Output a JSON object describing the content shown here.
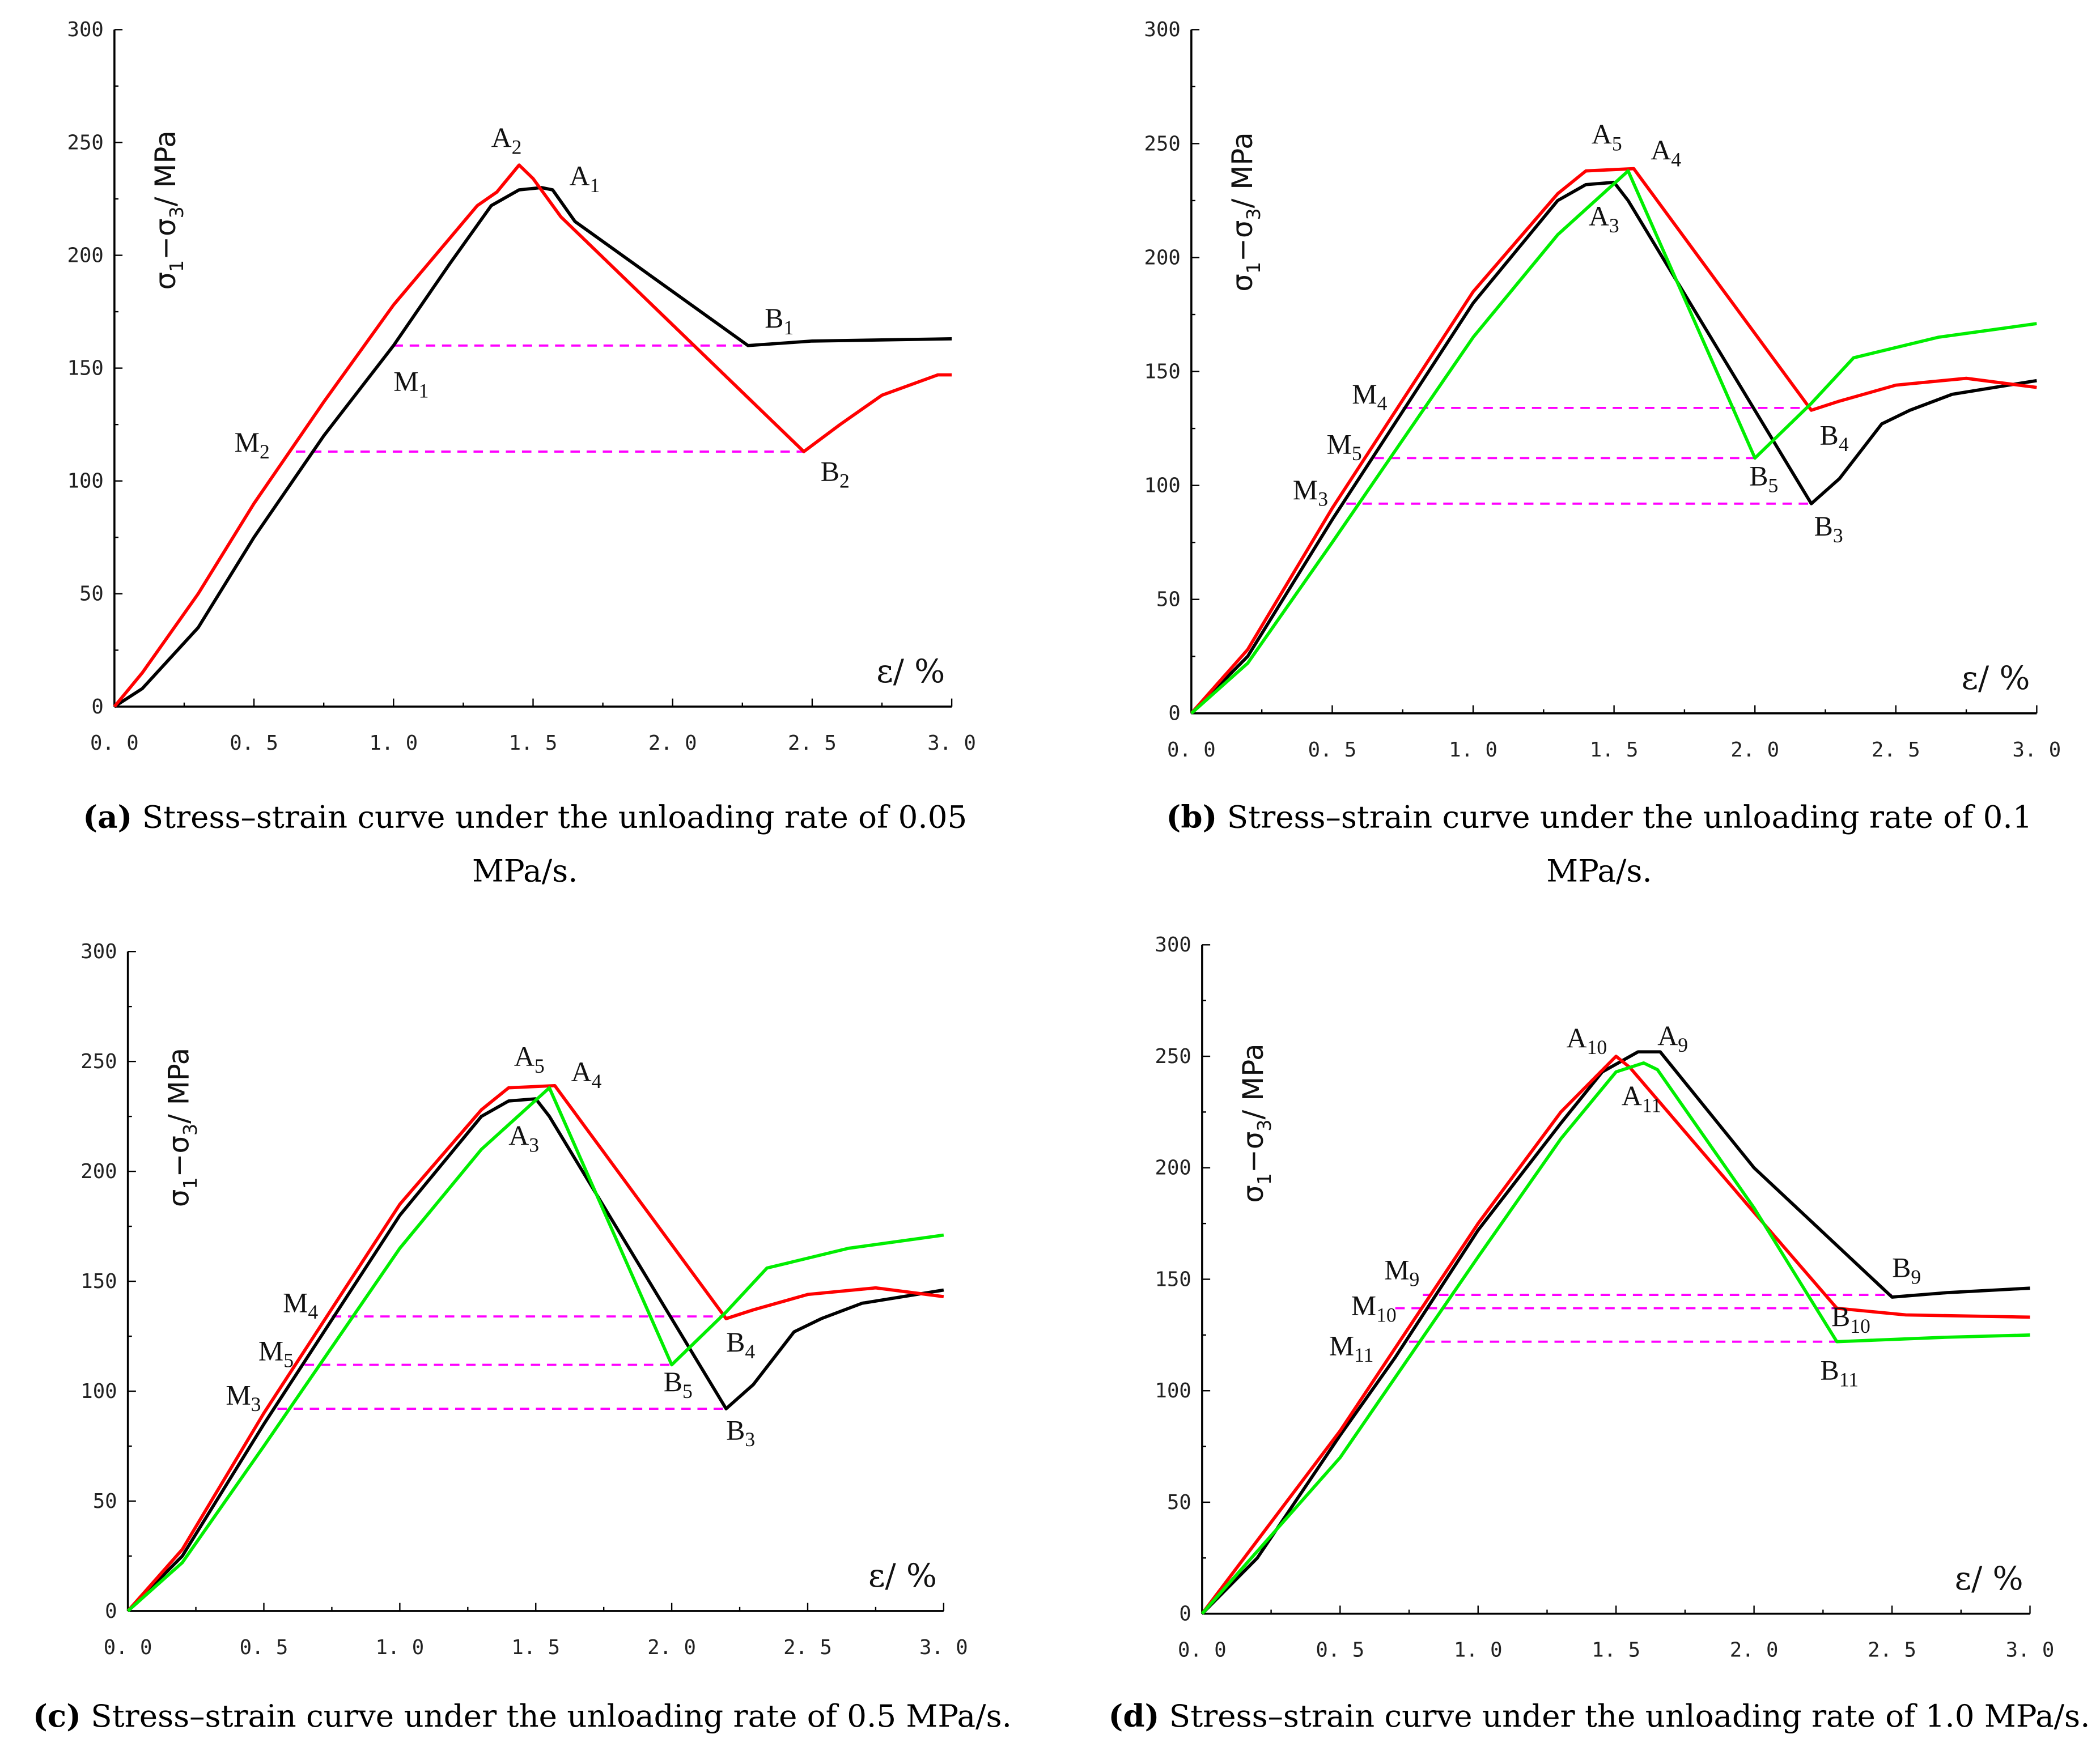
{
  "colors": {
    "black": "#000000",
    "red": "#ff0000",
    "green": "#00ee00",
    "dash": "#ff00ff"
  },
  "chart_data": [
    {
      "type": "line",
      "panel": "a",
      "xlim": [
        0,
        3
      ],
      "ylim": [
        0,
        300
      ],
      "xticks": [
        "0. 0",
        "0. 5",
        "1. 0",
        "1. 5",
        "2. 0",
        "2. 5",
        "3. 0"
      ],
      "yticks": [
        "0",
        "50",
        "100",
        "150",
        "200",
        "250",
        "300"
      ],
      "ylabel": {
        "main": "σ",
        "s1": "1",
        "mid": "−σ",
        "s3": "3",
        "end": "/ MPa"
      },
      "xlabel": "ε/ %",
      "caption": {
        "tag": "(a)",
        "line1": " Stress–strain curve under the unloading rate of 0.05",
        "line2": "MPa/s."
      },
      "series": [
        {
          "name": "black",
          "color": "black",
          "points": [
            [
              0,
              0
            ],
            [
              0.1,
              8
            ],
            [
              0.3,
              35
            ],
            [
              0.5,
              75
            ],
            [
              0.75,
              120
            ],
            [
              1.0,
              160
            ],
            [
              1.2,
              196
            ],
            [
              1.35,
              222
            ],
            [
              1.45,
              229
            ],
            [
              1.53,
              230
            ],
            [
              1.57,
              229
            ],
            [
              1.65,
              215
            ],
            [
              2.27,
              160
            ],
            [
              2.5,
              162
            ],
            [
              3.0,
              163
            ]
          ]
        },
        {
          "name": "red",
          "color": "red",
          "points": [
            [
              0,
              0
            ],
            [
              0.1,
              15
            ],
            [
              0.3,
              50
            ],
            [
              0.5,
              90
            ],
            [
              0.75,
              135
            ],
            [
              1.0,
              178
            ],
            [
              1.3,
              222
            ],
            [
              1.37,
              228
            ],
            [
              1.45,
              240
            ],
            [
              1.5,
              234
            ],
            [
              1.6,
              217
            ],
            [
              2.47,
              113
            ],
            [
              2.6,
              125
            ],
            [
              2.75,
              138
            ],
            [
              2.95,
              147
            ],
            [
              3.0,
              147
            ]
          ]
        }
      ],
      "dashes": [
        {
          "y": 160,
          "x": [
            1.0,
            2.27
          ]
        },
        {
          "y": 113,
          "x": [
            0.65,
            2.47
          ]
        }
      ],
      "annotations": [
        {
          "t": "A",
          "s": "2",
          "x": 1.35,
          "y": 248
        },
        {
          "t": "A",
          "s": "1",
          "x": 1.63,
          "y": 231
        },
        {
          "t": "B",
          "s": "1",
          "x": 2.33,
          "y": 168
        },
        {
          "t": "M",
          "s": "1",
          "x": 1.0,
          "y": 140
        },
        {
          "t": "M",
          "s": "2",
          "x": 0.43,
          "y": 113
        },
        {
          "t": "B",
          "s": "2",
          "x": 2.53,
          "y": 100
        }
      ]
    },
    {
      "type": "line",
      "panel": "b",
      "xlim": [
        0,
        3
      ],
      "ylim": [
        0,
        300
      ],
      "xticks": [
        "0. 0",
        "0. 5",
        "1. 0",
        "1. 5",
        "2. 0",
        "2. 5",
        "3. 0"
      ],
      "yticks": [
        "0",
        "50",
        "100",
        "150",
        "200",
        "250",
        "300"
      ],
      "ylabel": {
        "main": "σ",
        "s1": "1",
        "mid": "−σ",
        "s3": "3",
        "end": "/ MPa"
      },
      "xlabel": "ε/ %",
      "caption": {
        "tag": "(b)",
        "line1": " Stress–strain curve under the unloading rate of 0.1",
        "line2": "MPa/s."
      },
      "series": [
        {
          "name": "black",
          "color": "black",
          "points": [
            [
              0,
              0
            ],
            [
              0.2,
              25
            ],
            [
              0.5,
              85
            ],
            [
              1.0,
              180
            ],
            [
              1.3,
              225
            ],
            [
              1.4,
              232
            ],
            [
              1.5,
              233
            ],
            [
              1.55,
              225
            ],
            [
              2.2,
              92
            ],
            [
              2.3,
              103
            ],
            [
              2.45,
              127
            ],
            [
              2.55,
              133
            ],
            [
              2.7,
              140
            ],
            [
              3.0,
              146
            ]
          ]
        },
        {
          "name": "red",
          "color": "red",
          "points": [
            [
              0,
              0
            ],
            [
              0.2,
              28
            ],
            [
              0.5,
              90
            ],
            [
              1.0,
              185
            ],
            [
              1.3,
              228
            ],
            [
              1.4,
              238
            ],
            [
              1.57,
              239
            ],
            [
              2.2,
              133
            ],
            [
              2.3,
              137
            ],
            [
              2.5,
              144
            ],
            [
              2.75,
              147
            ],
            [
              3.0,
              143
            ]
          ]
        },
        {
          "name": "green",
          "color": "green",
          "points": [
            [
              0,
              0
            ],
            [
              0.2,
              22
            ],
            [
              0.5,
              75
            ],
            [
              1.0,
              165
            ],
            [
              1.3,
              210
            ],
            [
              1.55,
              238
            ],
            [
              2.0,
              112
            ],
            [
              2.2,
              136
            ],
            [
              2.35,
              156
            ],
            [
              2.65,
              165
            ],
            [
              3.0,
              171
            ]
          ]
        }
      ],
      "dashes": [
        {
          "y": 134,
          "x": [
            0.75,
            2.2
          ]
        },
        {
          "y": 112,
          "x": [
            0.65,
            2.0
          ]
        },
        {
          "y": 92,
          "x": [
            0.55,
            2.2
          ]
        }
      ],
      "annotations": [
        {
          "t": "A",
          "s": "5",
          "x": 1.42,
          "y": 250
        },
        {
          "t": "A",
          "s": "4",
          "x": 1.63,
          "y": 243
        },
        {
          "t": "A",
          "s": "3",
          "x": 1.41,
          "y": 214
        },
        {
          "t": "M",
          "s": "4",
          "x": 0.57,
          "y": 136
        },
        {
          "t": "M",
          "s": "5",
          "x": 0.48,
          "y": 114
        },
        {
          "t": "M",
          "s": "3",
          "x": 0.36,
          "y": 94
        },
        {
          "t": "B",
          "s": "4",
          "x": 2.23,
          "y": 118
        },
        {
          "t": "B",
          "s": "5",
          "x": 1.98,
          "y": 100
        },
        {
          "t": "B",
          "s": "3",
          "x": 2.21,
          "y": 78
        }
      ]
    },
    {
      "type": "line",
      "panel": "c",
      "xlim": [
        0,
        3
      ],
      "ylim": [
        0,
        300
      ],
      "xticks": [
        "0. 0",
        "0. 5",
        "1. 0",
        "1. 5",
        "2. 0",
        "2. 5",
        "3. 0"
      ],
      "yticks": [
        "0",
        "50",
        "100",
        "150",
        "200",
        "250",
        "300"
      ],
      "ylabel": {
        "main": "σ",
        "s1": "1",
        "mid": "−σ",
        "s3": "3",
        "end": "/ MPa"
      },
      "xlabel": "ε/ %",
      "caption": {
        "tag": "(c)",
        "line1": " Stress–strain curve under the unloading rate of 0.5 MPa/s.",
        "line2": ""
      },
      "series": [
        {
          "name": "black",
          "color": "black",
          "points": [
            [
              0,
              0
            ],
            [
              0.2,
              25
            ],
            [
              0.5,
              85
            ],
            [
              1.0,
              180
            ],
            [
              1.3,
              225
            ],
            [
              1.4,
              232
            ],
            [
              1.5,
              233
            ],
            [
              1.55,
              225
            ],
            [
              2.2,
              92
            ],
            [
              2.3,
              103
            ],
            [
              2.45,
              127
            ],
            [
              2.55,
              133
            ],
            [
              2.7,
              140
            ],
            [
              3.0,
              146
            ]
          ]
        },
        {
          "name": "red",
          "color": "red",
          "points": [
            [
              0,
              0
            ],
            [
              0.2,
              28
            ],
            [
              0.5,
              90
            ],
            [
              1.0,
              185
            ],
            [
              1.3,
              228
            ],
            [
              1.4,
              238
            ],
            [
              1.57,
              239
            ],
            [
              2.2,
              133
            ],
            [
              2.3,
              137
            ],
            [
              2.5,
              144
            ],
            [
              2.75,
              147
            ],
            [
              3.0,
              143
            ]
          ]
        },
        {
          "name": "green",
          "color": "green",
          "points": [
            [
              0,
              0
            ],
            [
              0.2,
              22
            ],
            [
              0.5,
              75
            ],
            [
              1.0,
              165
            ],
            [
              1.3,
              210
            ],
            [
              1.55,
              238
            ],
            [
              2.0,
              112
            ],
            [
              2.2,
              136
            ],
            [
              2.35,
              156
            ],
            [
              2.65,
              165
            ],
            [
              3.0,
              171
            ]
          ]
        }
      ],
      "dashes": [
        {
          "y": 134,
          "x": [
            0.75,
            2.2
          ]
        },
        {
          "y": 112,
          "x": [
            0.65,
            2.0
          ]
        },
        {
          "y": 92,
          "x": [
            0.55,
            2.2
          ]
        }
      ],
      "annotations": [
        {
          "t": "A",
          "s": "5",
          "x": 1.42,
          "y": 248
        },
        {
          "t": "A",
          "s": "4",
          "x": 1.63,
          "y": 241
        },
        {
          "t": "A",
          "s": "3",
          "x": 1.4,
          "y": 212
        },
        {
          "t": "M",
          "s": "4",
          "x": 0.57,
          "y": 136
        },
        {
          "t": "M",
          "s": "5",
          "x": 0.48,
          "y": 114
        },
        {
          "t": "M",
          "s": "3",
          "x": 0.36,
          "y": 94
        },
        {
          "t": "B",
          "s": "4",
          "x": 2.2,
          "y": 118
        },
        {
          "t": "B",
          "s": "5",
          "x": 1.97,
          "y": 100
        },
        {
          "t": "B",
          "s": "3",
          "x": 2.2,
          "y": 78
        }
      ]
    },
    {
      "type": "line",
      "panel": "d",
      "xlim": [
        0,
        3
      ],
      "ylim": [
        0,
        300
      ],
      "xticks": [
        "0. 0",
        "0. 5",
        "1. 0",
        "1. 5",
        "2. 0",
        "2. 5",
        "3. 0"
      ],
      "yticks": [
        "0",
        "50",
        "100",
        "150",
        "200",
        "250",
        "300"
      ],
      "ylabel": {
        "main": "σ",
        "s1": "1",
        "mid": "−σ",
        "s3": "3",
        "end": "/ MPa"
      },
      "xlabel": "ε/ %",
      "caption": {
        "tag": "(d)",
        "line1": " Stress–strain curve under the unloading rate of 1.0 MPa/s.",
        "line2": ""
      },
      "series": [
        {
          "name": "black",
          "color": "black",
          "points": [
            [
              0,
              0
            ],
            [
              0.2,
              25
            ],
            [
              0.5,
              80
            ],
            [
              0.7,
              115
            ],
            [
              1.0,
              172
            ],
            [
              1.3,
              220
            ],
            [
              1.45,
              243
            ],
            [
              1.58,
              252
            ],
            [
              1.66,
              252
            ],
            [
              2.0,
              200
            ],
            [
              2.5,
              142
            ],
            [
              2.7,
              144
            ],
            [
              3.0,
              146
            ]
          ]
        },
        {
          "name": "red",
          "color": "red",
          "points": [
            [
              0,
              0
            ],
            [
              0.5,
              82
            ],
            [
              1.0,
              175
            ],
            [
              1.3,
              225
            ],
            [
              1.5,
              250
            ],
            [
              1.55,
              245
            ],
            [
              2.0,
              180
            ],
            [
              2.3,
              137
            ],
            [
              2.55,
              134
            ],
            [
              3.0,
              133
            ]
          ]
        },
        {
          "name": "green",
          "color": "green",
          "points": [
            [
              0,
              0
            ],
            [
              0.5,
              70
            ],
            [
              1.0,
              160
            ],
            [
              1.3,
              213
            ],
            [
              1.5,
              243
            ],
            [
              1.6,
              247
            ],
            [
              1.65,
              244
            ],
            [
              2.0,
              182
            ],
            [
              2.3,
              122
            ],
            [
              2.7,
              124
            ],
            [
              3.0,
              125
            ]
          ]
        }
      ],
      "dashes": [
        {
          "y": 143,
          "x": [
            0.8,
            2.5
          ]
        },
        {
          "y": 137,
          "x": [
            0.7,
            2.3
          ]
        },
        {
          "y": 122,
          "x": [
            0.75,
            2.33
          ]
        }
      ],
      "annotations": [
        {
          "t": "A",
          "s": "10",
          "x": 1.32,
          "y": 254
        },
        {
          "t": "A",
          "s": "9",
          "x": 1.65,
          "y": 255
        },
        {
          "t": "A",
          "s": "11",
          "x": 1.52,
          "y": 228
        },
        {
          "t": "M",
          "s": "9",
          "x": 0.66,
          "y": 150
        },
        {
          "t": "M",
          "s": "10",
          "x": 0.54,
          "y": 134
        },
        {
          "t": "M",
          "s": "11",
          "x": 0.46,
          "y": 116
        },
        {
          "t": "B",
          "s": "9",
          "x": 2.5,
          "y": 151
        },
        {
          "t": "B",
          "s": "10",
          "x": 2.28,
          "y": 129
        },
        {
          "t": "B",
          "s": "11",
          "x": 2.24,
          "y": 105
        }
      ]
    }
  ]
}
